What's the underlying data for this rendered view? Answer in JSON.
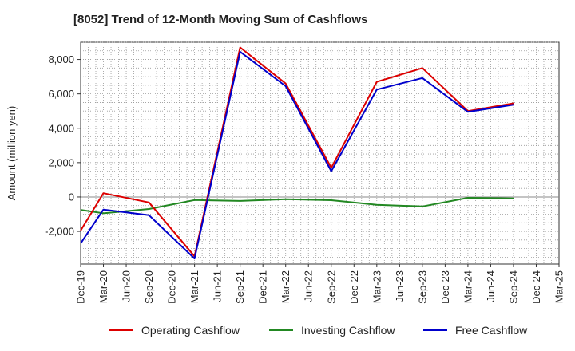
{
  "chart_data": {
    "type": "line",
    "title": "[8052]  Trend of 12-Month Moving Sum of Cashflows",
    "ylabel": "Amount (million yen)",
    "xlabel": "",
    "ylim": [
      -3900,
      9000
    ],
    "yticks": [
      -2000,
      0,
      2000,
      4000,
      6000,
      8000
    ],
    "ytick_labels": [
      "-2,000",
      "0",
      "2,000",
      "4,000",
      "6,000",
      "8,000"
    ],
    "categories": [
      "Dec-19",
      "Mar-20",
      "Jun-20",
      "Sep-20",
      "Dec-20",
      "Mar-21",
      "Jun-21",
      "Sep-21",
      "Dec-21",
      "Mar-22",
      "Jun-22",
      "Sep-22",
      "Dec-22",
      "Mar-23",
      "Jun-23",
      "Sep-23",
      "Dec-23",
      "Mar-24",
      "Jun-24",
      "Sep-24",
      "Dec-24",
      "Mar-25"
    ],
    "grid": true,
    "legend_position": "bottom",
    "series": [
      {
        "name": "Operating Cashflow",
        "color": "#dd0000",
        "values": [
          -1950,
          220,
          null,
          -320,
          null,
          -3450,
          null,
          8700,
          null,
          6600,
          null,
          1700,
          null,
          6700,
          null,
          7500,
          null,
          5000,
          null,
          5450,
          null,
          null
        ]
      },
      {
        "name": "Investing Cashflow",
        "color": "#228822",
        "values": [
          -750,
          -950,
          null,
          -700,
          null,
          -180,
          null,
          -230,
          null,
          -130,
          null,
          -190,
          null,
          -450,
          null,
          -550,
          null,
          -50,
          null,
          -80,
          null,
          null
        ]
      },
      {
        "name": "Free Cashflow",
        "color": "#0000cc",
        "values": [
          -2700,
          -730,
          null,
          -1060,
          null,
          -3580,
          null,
          8450,
          null,
          6450,
          null,
          1500,
          null,
          6250,
          null,
          6920,
          null,
          4950,
          null,
          5370,
          null,
          null
        ]
      }
    ]
  }
}
